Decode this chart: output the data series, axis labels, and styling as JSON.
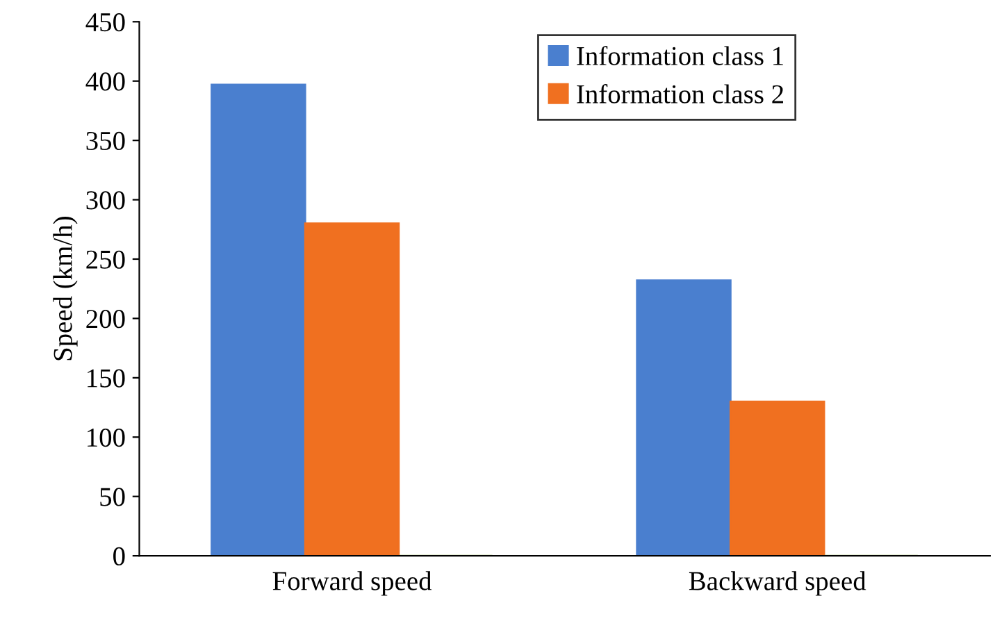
{
  "chart_data": {
    "type": "bar",
    "ylabel": "Speed (km/h)",
    "categories": [
      "Forward speed",
      "Backward speed"
    ],
    "series": [
      {
        "name": "Information class 1",
        "color": "#4a7fcf",
        "values": [
          397,
          232
        ]
      },
      {
        "name": "Information class 2",
        "color": "#f07020",
        "values": [
          280,
          130
        ]
      },
      {
        "color": "#9bbb59",
        "values": [
          0,
          0
        ]
      }
    ],
    "ylim": [
      0,
      450
    ],
    "yticks": [
      0,
      50,
      100,
      150,
      200,
      250,
      300,
      350,
      400,
      450
    ],
    "grid": false,
    "legend": "top"
  }
}
